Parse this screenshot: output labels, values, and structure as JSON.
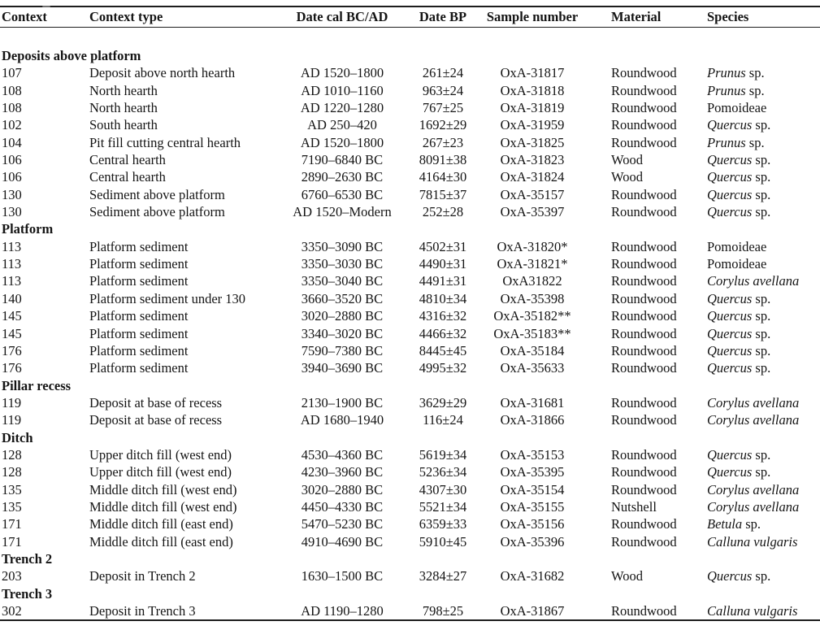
{
  "colors": {
    "background": "#ffffff",
    "text": "#141414",
    "rule": "#1d1d1d"
  },
  "table": {
    "columns": [
      {
        "key": "context",
        "label": "Context"
      },
      {
        "key": "context-type",
        "label": "Context type"
      },
      {
        "key": "date-cal",
        "label": "Date cal BC/AD"
      },
      {
        "key": "date-bp",
        "label": "Date BP"
      },
      {
        "key": "sample-number",
        "label": "Sample number"
      },
      {
        "key": "material",
        "label": "Material"
      },
      {
        "key": "species",
        "label": "Species"
      }
    ],
    "sections": [
      {
        "title": "Deposits above platform",
        "rows": [
          {
            "context": "107",
            "context_type": "Deposit above north hearth",
            "date_cal": "AD 1520–1800",
            "date_bp": "261±24",
            "sample": "OxA-31817",
            "material": "Roundwood",
            "species_italic": "Prunus",
            "species_roman": " sp."
          },
          {
            "context": "108",
            "context_type": "North hearth",
            "date_cal": "AD 1010–1160",
            "date_bp": "963±24",
            "sample": "OxA-31818",
            "material": "Roundwood",
            "species_italic": "Prunus",
            "species_roman": " sp."
          },
          {
            "context": "108",
            "context_type": "North hearth",
            "date_cal": "AD 1220–1280",
            "date_bp": "767±25",
            "sample": "OxA-31819",
            "material": "Roundwood",
            "species_italic": "",
            "species_roman": "Pomoideae"
          },
          {
            "context": "102",
            "context_type": "South hearth",
            "date_cal": "AD 250–420",
            "date_bp": "1692±29",
            "sample": "OxA-31959",
            "material": "Roundwood",
            "species_italic": "Quercus",
            "species_roman": " sp."
          },
          {
            "context": "104",
            "context_type": "Pit fill cutting central hearth",
            "date_cal": "AD 1520–1800",
            "date_bp": "267±23",
            "sample": "OxA-31825",
            "material": "Roundwood",
            "species_italic": "Prunus",
            "species_roman": " sp."
          },
          {
            "context": "106",
            "context_type": "Central hearth",
            "date_cal": "7190–6840 BC",
            "date_bp": "8091±38",
            "sample": "OxA-31823",
            "material": "Wood",
            "species_italic": "Quercus",
            "species_roman": " sp."
          },
          {
            "context": "106",
            "context_type": "Central hearth",
            "date_cal": "2890–2630 BC",
            "date_bp": "4164±30",
            "sample": "OxA-31824",
            "material": "Wood",
            "species_italic": "Quercus",
            "species_roman": " sp."
          },
          {
            "context": "130",
            "context_type": "Sediment above platform",
            "date_cal": "6760–6530 BC",
            "date_bp": "7815±37",
            "sample": "OxA-35157",
            "material": "Roundwood",
            "species_italic": "Quercus",
            "species_roman": " sp."
          },
          {
            "context": "130",
            "context_type": "Sediment above platform",
            "date_cal": "AD 1520–Modern",
            "date_bp": "252±28",
            "sample": "OxA-35397",
            "material": "Roundwood",
            "species_italic": "Quercus",
            "species_roman": " sp."
          }
        ]
      },
      {
        "title": "Platform",
        "rows": [
          {
            "context": "113",
            "context_type": "Platform sediment",
            "date_cal": "3350–3090 BC",
            "date_bp": "4502±31",
            "sample": "OxA-31820*",
            "material": "Roundwood",
            "species_italic": "",
            "species_roman": "Pomoideae"
          },
          {
            "context": "113",
            "context_type": "Platform sediment",
            "date_cal": "3350–3030 BC",
            "date_bp": "4490±31",
            "sample": "OxA-31821*",
            "material": "Roundwood",
            "species_italic": "",
            "species_roman": "Pomoideae"
          },
          {
            "context": "113",
            "context_type": "Platform sediment",
            "date_cal": "3350–3040 BC",
            "date_bp": "4491±31",
            "sample": "OxA31822",
            "material": "Roundwood",
            "species_italic": "Corylus avellana",
            "species_roman": ""
          },
          {
            "context": "140",
            "context_type": "Platform sediment under 130",
            "date_cal": "3660–3520 BC",
            "date_bp": "4810±34",
            "sample": "OxA-35398",
            "material": "Roundwood",
            "species_italic": "Quercus",
            "species_roman": " sp."
          },
          {
            "context": "145",
            "context_type": "Platform sediment",
            "date_cal": "3020–2880 BC",
            "date_bp": "4316±32",
            "sample": "OxA-35182**",
            "material": "Roundwood",
            "species_italic": "Quercus",
            "species_roman": " sp."
          },
          {
            "context": "145",
            "context_type": "Platform sediment",
            "date_cal": "3340–3020 BC",
            "date_bp": "4466±32",
            "sample": "OxA-35183**",
            "material": "Roundwood",
            "species_italic": "Quercus",
            "species_roman": " sp."
          },
          {
            "context": "176",
            "context_type": "Platform sediment",
            "date_cal": "7590–7380 BC",
            "date_bp": "8445±45",
            "sample": "OxA-35184",
            "material": "Roundwood",
            "species_italic": "Quercus",
            "species_roman": " sp."
          },
          {
            "context": "176",
            "context_type": "Platform sediment",
            "date_cal": "3940–3690 BC",
            "date_bp": "4995±32",
            "sample": "OxA-35633",
            "material": "Roundwood",
            "species_italic": "Quercus",
            "species_roman": " sp."
          }
        ]
      },
      {
        "title": "Pillar recess",
        "rows": [
          {
            "context": "119",
            "context_type": "Deposit at base of recess",
            "date_cal": "2130–1900 BC",
            "date_bp": "3629±29",
            "sample": "OxA-31681",
            "material": "Roundwood",
            "species_italic": "Corylus avellana",
            "species_roman": ""
          },
          {
            "context": "119",
            "context_type": "Deposit at base of recess",
            "date_cal": "AD 1680–1940",
            "date_bp": "116±24",
            "sample": "OxA-31866",
            "material": "Roundwood",
            "species_italic": "Corylus avellana",
            "species_roman": ""
          }
        ]
      },
      {
        "title": "Ditch",
        "rows": [
          {
            "context": "128",
            "context_type": "Upper ditch fill (west end)",
            "date_cal": "4530–4360 BC",
            "date_bp": "5619±34",
            "sample": "OxA-35153",
            "material": "Roundwood",
            "species_italic": "Quercus",
            "species_roman": " sp."
          },
          {
            "context": "128",
            "context_type": "Upper ditch fill (west end)",
            "date_cal": "4230–3960 BC",
            "date_bp": "5236±34",
            "sample": "OxA-35395",
            "material": "Roundwood",
            "species_italic": "Quercus",
            "species_roman": " sp."
          },
          {
            "context": "135",
            "context_type": "Middle ditch fill (west end)",
            "date_cal": "3020–2880 BC",
            "date_bp": "4307±30",
            "sample": "OxA-35154",
            "material": "Roundwood",
            "species_italic": "Corylus avellana",
            "species_roman": ""
          },
          {
            "context": "135",
            "context_type": "Middle ditch fill (west end)",
            "date_cal": "4450–4330 BC",
            "date_bp": "5521±34",
            "sample": "OxA-35155",
            "material": "Nutshell",
            "species_italic": "Corylus avellana",
            "species_roman": ""
          },
          {
            "context": "171",
            "context_type": "Middle ditch fill (east end)",
            "date_cal": "5470–5230 BC",
            "date_bp": "6359±33",
            "sample": "OxA-35156",
            "material": "Roundwood",
            "species_italic": "Betula",
            "species_roman": " sp."
          },
          {
            "context": "171",
            "context_type": "Middle ditch fill (east end)",
            "date_cal": "4910–4690 BC",
            "date_bp": "5910±45",
            "sample": "OxA-35396",
            "material": "Roundwood",
            "species_italic": "Calluna vulgaris",
            "species_roman": ""
          }
        ]
      },
      {
        "title": "Trench 2",
        "rows": [
          {
            "context": "203",
            "context_type": "Deposit in Trench 2",
            "date_cal": "1630–1500 BC",
            "date_bp": "3284±27",
            "sample": "OxA-31682",
            "material": "Wood",
            "species_italic": "Quercus",
            "species_roman": " sp."
          }
        ]
      },
      {
        "title": "Trench 3",
        "rows": [
          {
            "context": "302",
            "context_type": "Deposit in Trench 3",
            "date_cal": "AD 1190–1280",
            "date_bp": "798±25",
            "sample": "OxA-31867",
            "material": "Roundwood",
            "species_italic": "Calluna vulgaris",
            "species_roman": ""
          }
        ]
      }
    ]
  }
}
